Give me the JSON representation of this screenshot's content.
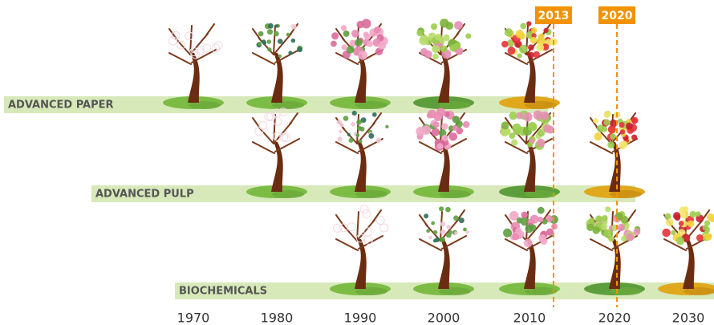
{
  "rows": [
    {
      "label": "ADVANCED PAPER"
    },
    {
      "label": "ADVANCED PULP"
    },
    {
      "label": "BIOCHEMICALS"
    }
  ],
  "years": [
    "1970",
    "1980",
    "1990",
    "2000",
    "2010",
    "2020",
    "2030"
  ],
  "markers": [
    "2013",
    "2020"
  ]
}
